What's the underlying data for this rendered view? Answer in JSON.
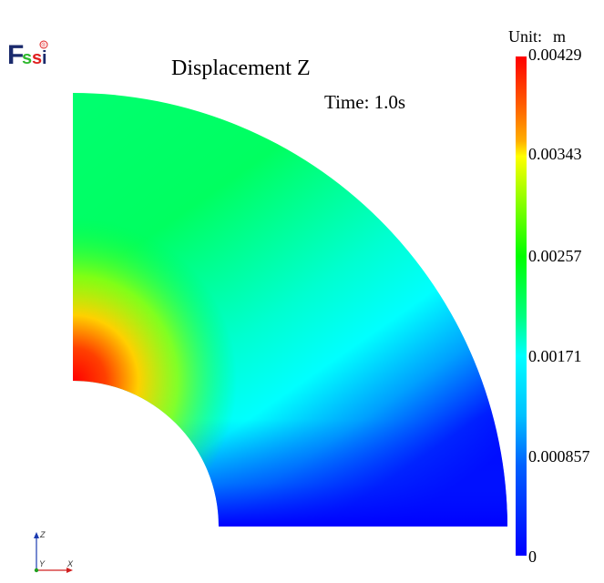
{
  "viewport": {
    "title": "Displacement Z",
    "time_label": "Time: 1.0s"
  },
  "legend": {
    "unit_label": "Unit:",
    "unit_value": "m",
    "ticks": [
      "0.00429",
      "0.00343",
      "0.00257",
      "0.00171",
      "0.000857",
      "0"
    ],
    "colors": [
      "#ff0000",
      "#ffff00",
      "#00ff00",
      "#00ffff",
      "#0000ff"
    ]
  },
  "logo": {
    "letters": [
      "F",
      "s",
      "s",
      "i"
    ],
    "mark": "®",
    "colors": {
      "f": "#1a2a6c",
      "s": "#2eb82e",
      "i": "#1a2a6c",
      "mark": "#e02020"
    }
  },
  "axes": {
    "z_label": "Z",
    "y_label": "Y",
    "x_label": "X"
  }
}
